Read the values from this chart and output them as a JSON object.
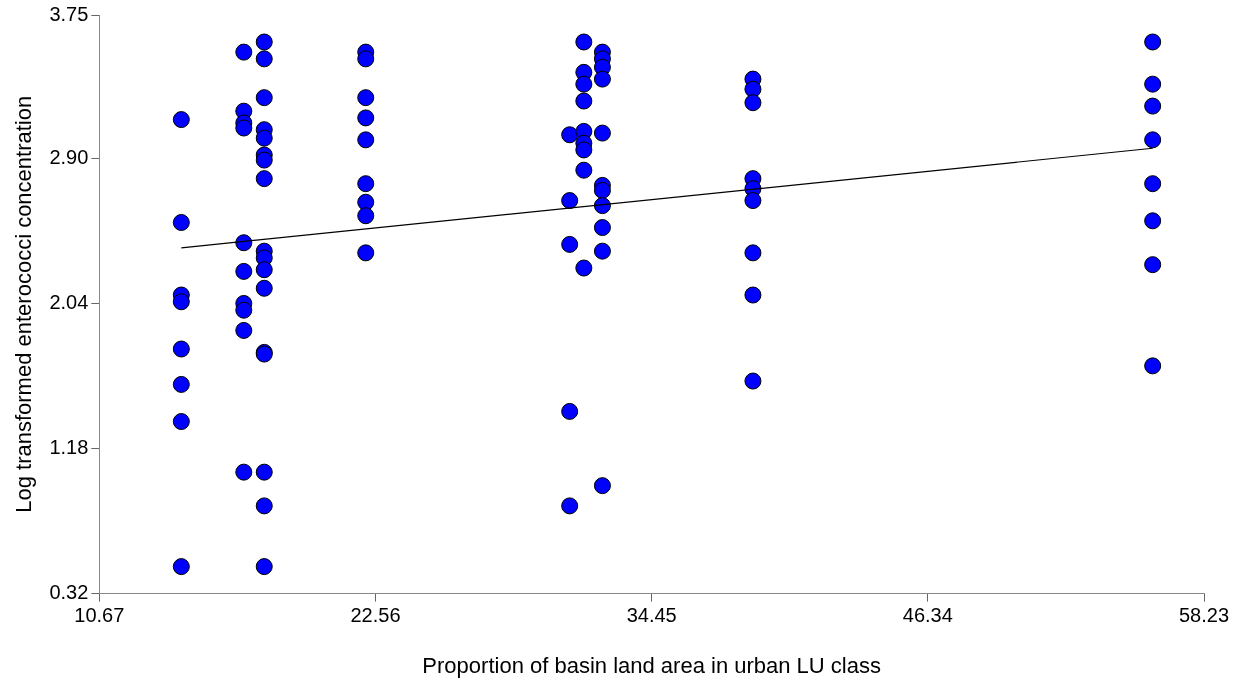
{
  "chart_data": {
    "type": "scatter",
    "xlabel": "Proportion of basin land area in urban LU class",
    "ylabel": "Log transformed enterococci concentration",
    "xlim": [
      10.67,
      58.23
    ],
    "xticks": [
      10.67,
      22.56,
      34.45,
      46.34,
      58.23
    ],
    "ylim": [
      0.32,
      3.75
    ],
    "yticks": [
      0.32,
      1.18,
      2.04,
      {
        "value": 2.9,
        "label": "2.90"
      },
      3.75
    ],
    "grid": false,
    "legend": false,
    "series": [
      {
        "type": "scatter",
        "color": "#0000ff",
        "marker": "circle",
        "x": [
          14.2,
          14.2,
          14.2,
          14.2,
          14.2,
          14.2,
          14.2,
          14.2,
          16.89,
          16.89,
          16.89,
          16.89,
          16.89,
          16.89,
          16.89,
          16.89,
          16.89,
          16.89,
          17.77,
          17.77,
          17.77,
          17.77,
          17.77,
          17.77,
          17.77,
          17.77,
          17.77,
          17.77,
          17.77,
          17.77,
          17.77,
          17.77,
          17.77,
          17.77,
          17.77,
          22.14,
          22.14,
          22.14,
          22.14,
          22.14,
          22.14,
          22.14,
          22.14,
          22.14,
          30.92,
          30.92,
          30.92,
          30.92,
          30.92,
          31.53,
          31.53,
          31.53,
          31.53,
          31.53,
          31.53,
          31.53,
          31.53,
          31.53,
          32.33,
          32.33,
          32.33,
          32.33,
          32.33,
          32.33,
          32.33,
          32.33,
          32.33,
          32.33,
          32.33,
          38.81,
          38.81,
          38.81,
          38.81,
          38.81,
          38.81,
          38.81,
          38.81,
          38.81,
          56.02,
          56.02,
          56.02,
          56.02,
          56.02,
          56.02,
          56.02,
          56.02
        ],
        "values": [
          3.13,
          2.52,
          2.09,
          2.05,
          1.77,
          1.56,
          1.34,
          0.48,
          3.53,
          3.18,
          3.11,
          3.08,
          2.4,
          2.23,
          2.04,
          2.0,
          1.88,
          1.04,
          3.59,
          3.49,
          3.26,
          3.07,
          3.02,
          2.92,
          2.89,
          2.78,
          2.35,
          2.31,
          2.24,
          2.13,
          1.75,
          1.74,
          1.04,
          0.84,
          0.48,
          3.53,
          3.49,
          3.26,
          3.14,
          3.01,
          2.75,
          2.64,
          2.56,
          2.34,
          3.04,
          2.65,
          2.39,
          1.4,
          0.84,
          3.59,
          3.41,
          3.34,
          3.24,
          3.06,
          2.99,
          2.95,
          2.83,
          2.25,
          3.53,
          3.49,
          3.44,
          3.37,
          3.05,
          2.74,
          2.71,
          2.62,
          2.49,
          2.35,
          0.96,
          3.37,
          3.31,
          3.23,
          2.78,
          2.72,
          2.65,
          2.34,
          2.09,
          1.58,
          3.59,
          3.34,
          3.21,
          3.01,
          2.75,
          2.53,
          2.27,
          1.67
        ]
      },
      {
        "type": "line",
        "color": "#000000",
        "marker": "none",
        "x": [
          14.2,
          56.02
        ],
        "values": [
          2.37,
          2.96
        ]
      }
    ]
  }
}
